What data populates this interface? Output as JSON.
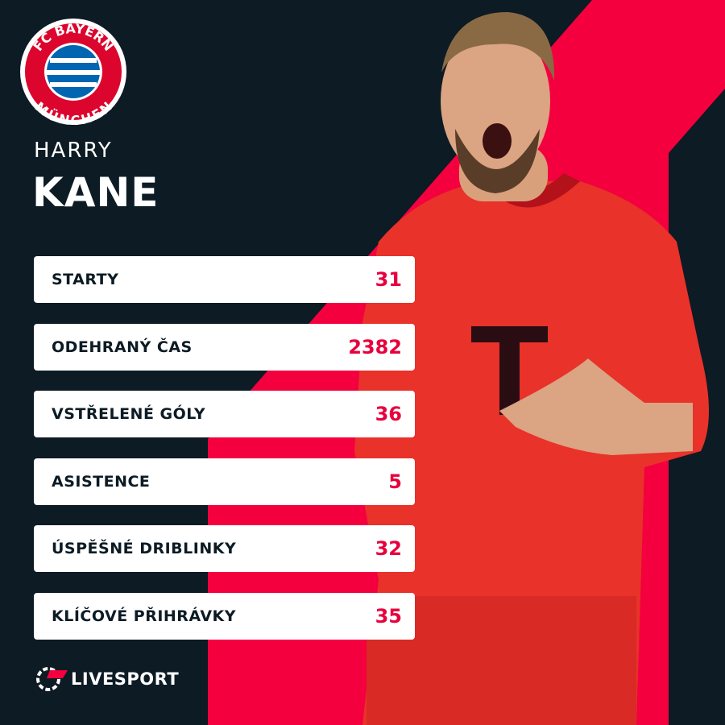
{
  "logo": {
    "top": "FC BAYERN",
    "bottom": "MÜNCHEN"
  },
  "player": {
    "first_name": "HARRY",
    "last_name": "KANE"
  },
  "stats": [
    {
      "label": "STARTY",
      "value": 31
    },
    {
      "label": "ODEHRANÝ ČAS",
      "value": 2382
    },
    {
      "label": "VSTŘELENÉ GÓLY",
      "value": 36
    },
    {
      "label": "ASISTENCE",
      "value": 5
    },
    {
      "label": "ÚSPĚŠNÉ DRIBLINKY",
      "value": 32
    },
    {
      "label": "KLÍČOVÉ PŘIHRÁVKY",
      "value": 35
    }
  ],
  "brand": "LIVESPORT"
}
